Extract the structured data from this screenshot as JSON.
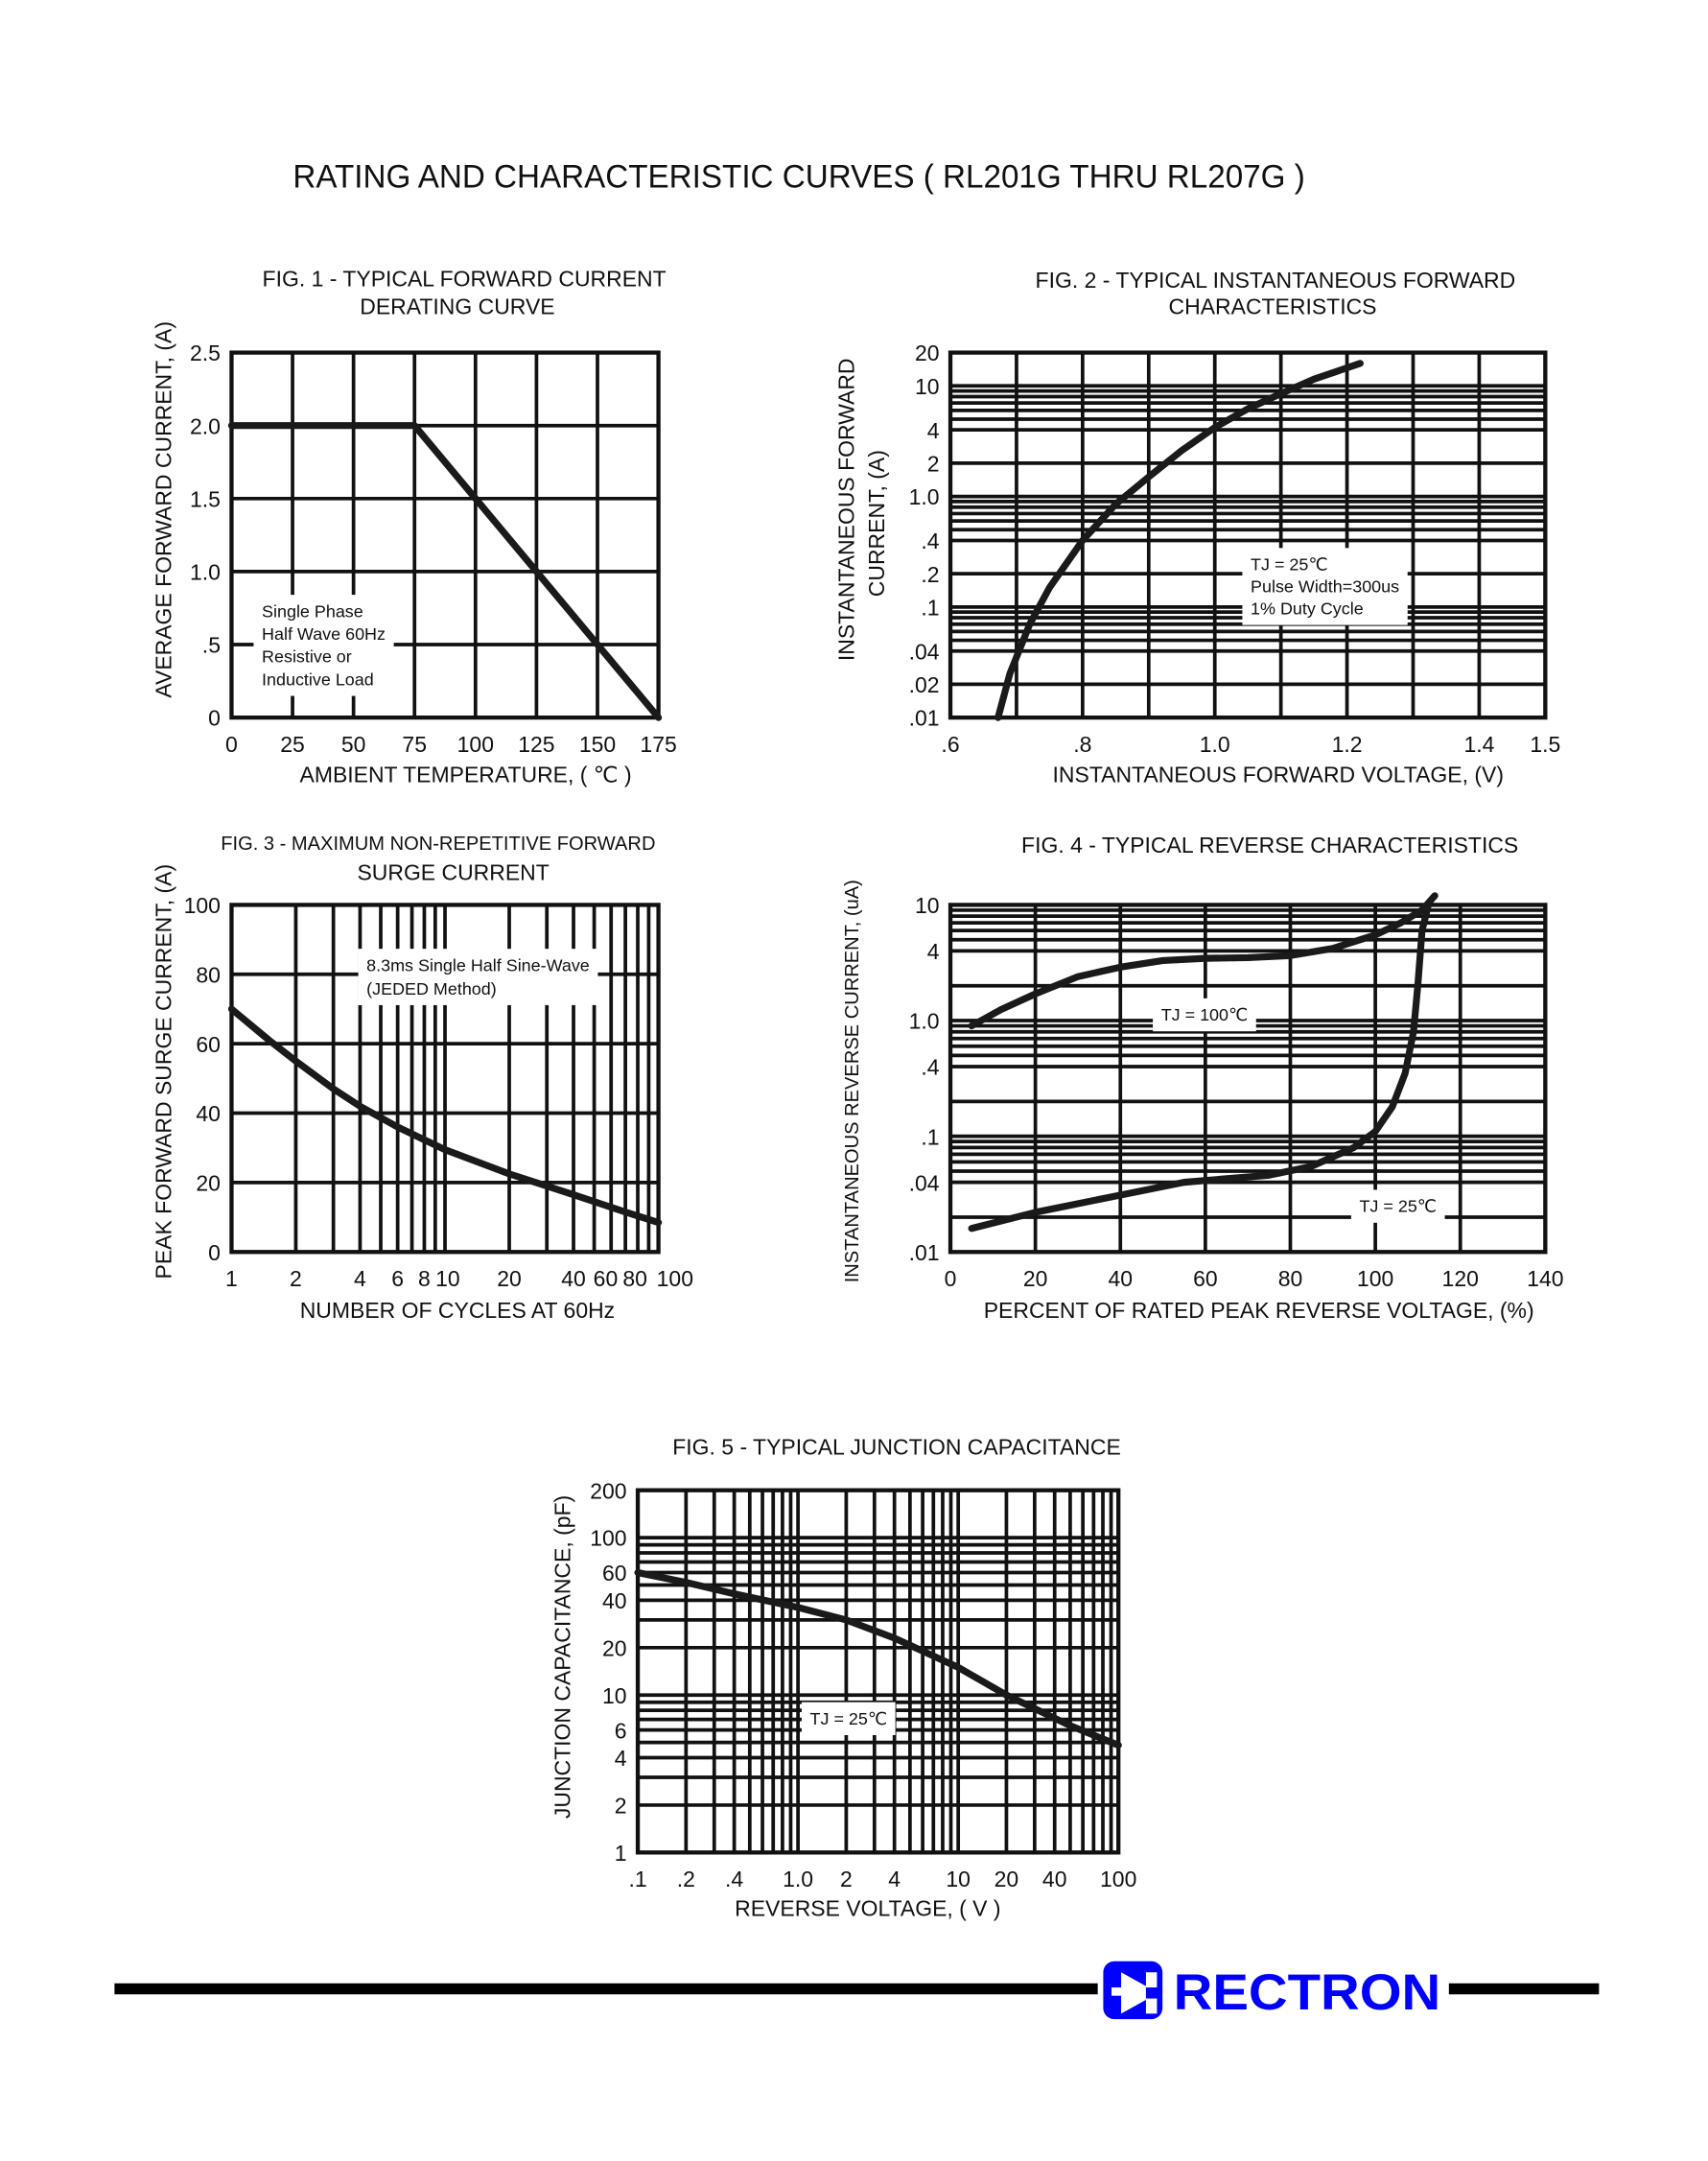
{
  "page": {
    "title": "RATING AND CHARACTERISTIC CURVES ( RL201G THRU RL207G )"
  },
  "brand": {
    "logo_text": "RECTRON",
    "logo_color": "#0000ff",
    "logo_icon": "diode-icon"
  },
  "chart_data": [
    {
      "id": "fig1",
      "type": "line",
      "title": [
        "FIG. 1 - TYPICAL FORWARD CURRENT",
        "DERATING CURVE"
      ],
      "xlabel": "AMBIENT TEMPERATURE, ( ℃ )",
      "ylabel": [
        "AVERAGE FORWARD  CURRENT, (A)"
      ],
      "xscale": "linear",
      "yscale": "linear",
      "xlim": [
        0,
        175
      ],
      "ylim": [
        0,
        2.5
      ],
      "xticks": [
        0,
        25,
        50,
        75,
        100,
        125,
        150,
        175
      ],
      "xtick_labels": [
        "0",
        "25",
        "50",
        "75",
        "100",
        "125",
        "150",
        "175"
      ],
      "yticks": [
        0,
        0.5,
        1.0,
        1.5,
        2.0,
        2.5
      ],
      "ytick_labels": [
        "0",
        ".5",
        "1.0",
        "1.5",
        "2.0",
        "2.5"
      ],
      "grid": true,
      "grid_x": [
        25,
        50,
        75,
        100,
        125,
        150
      ],
      "grid_y": [
        0.5,
        1.0,
        1.5,
        2.0
      ],
      "annotations": [
        [
          "Single Phase",
          "Half Wave 60Hz",
          "Resistive or",
          "Inductive Load"
        ]
      ],
      "series": [
        {
          "points": [
            [
              0,
              2.0
            ],
            [
              75,
              2.0
            ],
            [
              175,
              0
            ]
          ]
        }
      ]
    },
    {
      "id": "fig2",
      "type": "line",
      "title": [
        "FIG. 2 - TYPICAL INSTANTANEOUS FORWARD",
        "CHARACTERISTICS"
      ],
      "xlabel": "INSTANTANEOUS FORWARD VOLTAGE, (V)",
      "ylabel": [
        "INSTANTANEOUS FORWARD",
        "CURRENT, (A)"
      ],
      "xscale": "linear",
      "yscale": "log",
      "xlim": [
        0.6,
        1.5
      ],
      "ylim": [
        0.01,
        20
      ],
      "xticks": [
        0.6,
        0.8,
        1.0,
        1.2,
        1.4,
        1.5
      ],
      "xtick_labels": [
        ".6",
        ".8",
        "1.0",
        "1.2",
        "1.4",
        "1.5"
      ],
      "yticks": [
        0.01,
        0.02,
        0.04,
        0.1,
        0.2,
        0.4,
        1.0,
        2,
        4,
        10,
        20
      ],
      "ytick_labels": [
        ".01",
        ".02",
        ".04",
        ".1",
        ".2",
        ".4",
        "1.0",
        "2",
        "4",
        "10",
        "20"
      ],
      "grid": true,
      "grid_x": [
        0.7,
        0.8,
        0.9,
        1.0,
        1.1,
        1.2,
        1.3,
        1.4
      ],
      "grid_y": [
        0.02,
        0.04,
        0.05,
        0.06,
        0.07,
        0.08,
        0.09,
        0.1,
        0.2,
        0.4,
        0.5,
        0.6,
        0.7,
        0.8,
        0.9,
        1,
        2,
        4,
        5,
        6,
        7,
        8,
        9,
        10
      ],
      "annotations": [
        [
          "TJ = 25℃",
          "Pulse Width=300us",
          "1% Duty Cycle"
        ]
      ],
      "series": [
        {
          "points": [
            [
              0.672,
              0.01
            ],
            [
              0.69,
              0.025
            ],
            [
              0.72,
              0.07
            ],
            [
              0.75,
              0.15
            ],
            [
              0.8,
              0.4
            ],
            [
              0.85,
              0.85
            ],
            [
              0.9,
              1.5
            ],
            [
              0.95,
              2.6
            ],
            [
              1.0,
              4.2
            ],
            [
              1.05,
              6.2
            ],
            [
              1.1,
              8.5
            ],
            [
              1.15,
              11.5
            ],
            [
              1.22,
              16
            ]
          ]
        }
      ]
    },
    {
      "id": "fig3",
      "type": "line",
      "title": [
        "FIG. 3 - MAXIMUM NON-REPETITIVE FORWARD",
        "SURGE CURRENT"
      ],
      "xlabel": "NUMBER OF CYCLES AT 60Hz",
      "ylabel": [
        "PEAK FORWARD SURGE CURRENT, (A)"
      ],
      "xscale": "log",
      "yscale": "linear",
      "xlim": [
        1,
        100
      ],
      "ylim": [
        0,
        100
      ],
      "xticks": [
        1,
        2,
        4,
        6,
        8,
        10,
        20,
        40,
        60,
        80,
        100
      ],
      "xtick_labels": [
        "1",
        "2",
        "4",
        "6",
        "8",
        "10",
        "20",
        "40",
        "60",
        "80",
        "100"
      ],
      "yticks": [
        0,
        20,
        40,
        60,
        80,
        100
      ],
      "ytick_labels": [
        "0",
        "20",
        "40",
        "60",
        "80",
        "100"
      ],
      "grid": true,
      "grid_x": [
        2,
        3,
        4,
        5,
        6,
        7,
        8,
        9,
        10,
        20,
        30,
        40,
        50,
        60,
        70,
        80,
        90
      ],
      "grid_y": [
        20,
        40,
        60,
        80
      ],
      "annotations": [
        [
          "8.3ms Single Half Sine-Wave",
          "(JEDED Method)"
        ]
      ],
      "series": [
        {
          "points": [
            [
              1,
              70
            ],
            [
              1.5,
              61
            ],
            [
              2,
              55
            ],
            [
              3,
              47
            ],
            [
              4,
              42
            ],
            [
              6,
              36
            ],
            [
              10,
              29.5
            ],
            [
              20,
              22.5
            ],
            [
              40,
              16.5
            ],
            [
              70,
              11.5
            ],
            [
              100,
              8.5
            ]
          ]
        }
      ]
    },
    {
      "id": "fig4",
      "type": "line",
      "title": [
        "FIG. 4 - TYPICAL REVERSE CHARACTERISTICS"
      ],
      "xlabel": "PERCENT OF RATED PEAK REVERSE VOLTAGE, (%)",
      "ylabel": [
        "INSTANTANEOUS REVERSE CURRENT, (uA)"
      ],
      "xscale": "linear",
      "yscale": "log",
      "xlim": [
        0,
        140
      ],
      "ylim": [
        0.01,
        10
      ],
      "xticks": [
        0,
        20,
        40,
        60,
        80,
        100,
        120,
        140
      ],
      "xtick_labels": [
        "0",
        "20",
        "40",
        "60",
        "80",
        "100",
        "120",
        "140"
      ],
      "yticks": [
        0.01,
        0.04,
        0.1,
        0.4,
        1.0,
        4,
        10
      ],
      "ytick_labels": [
        ".01",
        ".04",
        ".1",
        ".4",
        "1.0",
        "4",
        "10"
      ],
      "grid": true,
      "grid_x": [
        20,
        40,
        60,
        80,
        100,
        120
      ],
      "grid_y": [
        0.02,
        0.04,
        0.05,
        0.06,
        0.07,
        0.08,
        0.09,
        0.1,
        0.2,
        0.4,
        0.5,
        0.6,
        0.7,
        0.8,
        0.9,
        1,
        2,
        4,
        5,
        6,
        7,
        8,
        9
      ],
      "annotations": [
        [
          "TJ = 100℃"
        ],
        [
          "TJ = 25℃"
        ]
      ],
      "series": [
        {
          "name": "TJ = 100℃",
          "points": [
            [
              5,
              0.9
            ],
            [
              12,
              1.25
            ],
            [
              20,
              1.7
            ],
            [
              30,
              2.4
            ],
            [
              40,
              2.9
            ],
            [
              50,
              3.3
            ],
            [
              60,
              3.45
            ],
            [
              70,
              3.5
            ],
            [
              80,
              3.65
            ],
            [
              90,
              4.2
            ],
            [
              100,
              5.5
            ],
            [
              106,
              7
            ],
            [
              111,
              9
            ],
            [
              114,
              12
            ]
          ]
        },
        {
          "name": "TJ = 25℃",
          "points": [
            [
              5,
              0.016
            ],
            [
              20,
              0.022
            ],
            [
              40,
              0.031
            ],
            [
              55,
              0.04
            ],
            [
              65,
              0.043
            ],
            [
              75,
              0.046
            ],
            [
              85,
              0.055
            ],
            [
              95,
              0.08
            ],
            [
              100,
              0.11
            ],
            [
              104,
              0.18
            ],
            [
              107,
              0.35
            ],
            [
              109,
              0.8
            ],
            [
              110,
              2
            ],
            [
              111,
              6
            ],
            [
              112.5,
              10
            ]
          ]
        }
      ]
    },
    {
      "id": "fig5",
      "type": "line",
      "title": [
        "FIG. 5 - TYPICAL JUNCTION CAPACITANCE"
      ],
      "xlabel": "REVERSE VOLTAGE, ( V )",
      "ylabel": [
        "JUNCTION CAPACITANCE, (pF)"
      ],
      "xscale": "log",
      "yscale": "log",
      "xlim": [
        0.1,
        100
      ],
      "ylim": [
        1,
        200
      ],
      "xticks": [
        0.1,
        0.2,
        0.4,
        1.0,
        2,
        4,
        10,
        20,
        40,
        100
      ],
      "xtick_labels": [
        ".1",
        ".2",
        ".4",
        "1.0",
        "2",
        "4",
        "10",
        "20",
        "40",
        "100"
      ],
      "yticks": [
        1,
        2,
        4,
        6,
        10,
        20,
        40,
        60,
        100,
        200
      ],
      "ytick_labels": [
        "1",
        "2",
        "4",
        "6",
        "10",
        "20",
        "40",
        "60",
        "100",
        "200"
      ],
      "grid": true,
      "grid_x": [
        0.2,
        0.3,
        0.4,
        0.5,
        0.6,
        0.7,
        0.8,
        0.9,
        1,
        2,
        3,
        4,
        5,
        6,
        7,
        8,
        9,
        10,
        20,
        30,
        40,
        50,
        60,
        70,
        80,
        90
      ],
      "grid_y": [
        2,
        3,
        4,
        5,
        6,
        7,
        8,
        9,
        10,
        20,
        30,
        40,
        50,
        60,
        70,
        80,
        90,
        100
      ],
      "annotations": [
        [
          "TJ = 25℃"
        ]
      ],
      "series": [
        {
          "points": [
            [
              0.1,
              60
            ],
            [
              0.2,
              52
            ],
            [
              0.4,
              44
            ],
            [
              1,
              36
            ],
            [
              2,
              30
            ],
            [
              4,
              23
            ],
            [
              10,
              15
            ],
            [
              20,
              10
            ],
            [
              50,
              6.4
            ],
            [
              100,
              4.8
            ]
          ]
        }
      ]
    }
  ]
}
